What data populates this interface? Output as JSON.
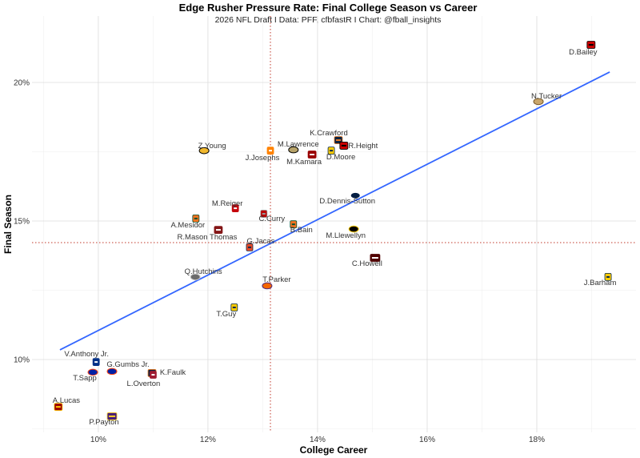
{
  "chart_data": {
    "type": "scatter",
    "title": "Edge Rusher Pressure Rate: Final College Season vs Career",
    "subtitle": "2026 NFL Draft I Data: PFF, cfbfastR I Chart: @fball_insights",
    "xlabel": "College Career",
    "ylabel": "Final Season",
    "xlim": [
      8.79,
      19.81
    ],
    "ylim": [
      7.37,
      22.4
    ],
    "x_ticks": [
      10,
      12,
      14,
      16,
      18
    ],
    "y_ticks": [
      10,
      15,
      20
    ],
    "x_tick_labels": [
      "10%",
      "12%",
      "14%",
      "16%",
      "18%"
    ],
    "y_tick_labels": [
      "10%",
      "15%",
      "20%"
    ],
    "grid": true,
    "mean_lines": {
      "x": 13.14,
      "y": 14.22,
      "color": "#c0392b",
      "style": "dotted"
    },
    "trend_line": {
      "x": [
        9.3,
        19.33
      ],
      "y": [
        10.35,
        20.38
      ],
      "color": "#3366ff"
    },
    "points": [
      {
        "name": "D.Bailey",
        "x": 18.99,
        "y": 21.36,
        "color": "#cc0000",
        "color2": "#000000",
        "glyph": "TT"
      },
      {
        "name": "N.Tucker",
        "x": 18.03,
        "y": 19.31,
        "color": "#c9a66b",
        "color2": "#7a5c2e",
        "glyph": "~"
      },
      {
        "name": "K.Crawford",
        "x": 14.38,
        "y": 17.92,
        "color": "#0c2340",
        "color2": "#e87722",
        "glyph": "AU"
      },
      {
        "name": "R.Height",
        "x": 14.48,
        "y": 17.72,
        "color": "#cc0000",
        "color2": "#000000",
        "glyph": "TT"
      },
      {
        "name": "M.Lawrence",
        "x": 13.56,
        "y": 17.57,
        "color": "#b7a369",
        "color2": "#000000",
        "glyph": "~"
      },
      {
        "name": "D.Moore",
        "x": 14.25,
        "y": 17.54,
        "color": "#ffcb05",
        "color2": "#00274c",
        "glyph": "M"
      },
      {
        "name": "M.Kamara",
        "x": 13.9,
        "y": 17.4,
        "color": "#990000",
        "color2": "#ffffff",
        "glyph": "IU"
      },
      {
        "name": "J.Josephs",
        "x": 13.14,
        "y": 17.54,
        "color": "#ff8200",
        "color2": "#ffffff",
        "glyph": "T"
      },
      {
        "name": "Z.Young",
        "x": 11.93,
        "y": 17.54,
        "color": "#f1b82d",
        "color2": "#000000",
        "glyph": "~"
      },
      {
        "name": "D.Dennis-Sutton",
        "x": 14.69,
        "y": 15.92,
        "color": "#041e42",
        "color2": "#ffffff",
        "glyph": "~"
      },
      {
        "name": "M.Reiger",
        "x": 12.5,
        "y": 15.46,
        "color": "#c5050c",
        "color2": "#ffffff",
        "glyph": "W"
      },
      {
        "name": "C.Curry",
        "x": 13.02,
        "y": 15.26,
        "color": "#bb0000",
        "color2": "#999999",
        "glyph": "O"
      },
      {
        "name": "A.Mesidor",
        "x": 11.78,
        "y": 15.09,
        "color": "#f47321",
        "color2": "#005030",
        "glyph": "U"
      },
      {
        "name": "B.Bain",
        "x": 13.56,
        "y": 14.88,
        "color": "#f47321",
        "color2": "#005030",
        "glyph": "U"
      },
      {
        "name": "R.Mason Thomas",
        "x": 12.19,
        "y": 14.68,
        "color": "#841617",
        "color2": "#ffffff",
        "glyph": "OU"
      },
      {
        "name": "M.Llewellyn",
        "x": 14.66,
        "y": 14.71,
        "color": "#000000",
        "color2": "#ffcd00",
        "glyph": "~"
      },
      {
        "name": "G.Jacas",
        "x": 12.76,
        "y": 14.05,
        "color": "#e84a27",
        "color2": "#13294b",
        "glyph": "I"
      },
      {
        "name": "C.Howell",
        "x": 15.05,
        "y": 13.67,
        "color": "#500000",
        "color2": "#ffffff",
        "glyph": "ATM"
      },
      {
        "name": "J.Barham",
        "x": 19.3,
        "y": 12.98,
        "color": "#ffcb05",
        "color2": "#00274c",
        "glyph": "M"
      },
      {
        "name": "Q.Hutchins",
        "x": 11.77,
        "y": 12.98,
        "color": "#6b6b6b",
        "color2": "#cccccc",
        "glyph": "~"
      },
      {
        "name": "T.Parker",
        "x": 13.08,
        "y": 12.66,
        "color": "#f56600",
        "color2": "#522d80",
        "glyph": "~"
      },
      {
        "name": "T.Guy",
        "x": 12.48,
        "y": 11.88,
        "color": "#ffcb05",
        "color2": "#00274c",
        "glyph": "M"
      },
      {
        "name": "V.Anthony Jr.",
        "x": 9.96,
        "y": 9.91,
        "color": "#003087",
        "color2": "#ffffff",
        "glyph": "D"
      },
      {
        "name": "G.Gumbs Jr.",
        "x": 10.25,
        "y": 9.57,
        "color": "#0021a5",
        "color2": "#fa4616",
        "glyph": "~"
      },
      {
        "name": "T.Sapp",
        "x": 9.9,
        "y": 9.54,
        "color": "#0021a5",
        "color2": "#fa4616",
        "glyph": "~"
      },
      {
        "name": "K.Faulk",
        "x": 10.98,
        "y": 9.51,
        "color": "#0c2340",
        "color2": "#e87722",
        "glyph": "AU"
      },
      {
        "name": "L.Overton",
        "x": 11.0,
        "y": 9.45,
        "color": "#9e1b32",
        "color2": "#ffffff",
        "glyph": "A"
      },
      {
        "name": "A.Lucas",
        "x": 9.27,
        "y": 8.29,
        "color": "#990000",
        "color2": "#ffcc00",
        "glyph": "SC"
      },
      {
        "name": "P.Payton",
        "x": 10.25,
        "y": 7.95,
        "color": "#461d7c",
        "color2": "#fdd023",
        "glyph": "LSU"
      }
    ]
  }
}
